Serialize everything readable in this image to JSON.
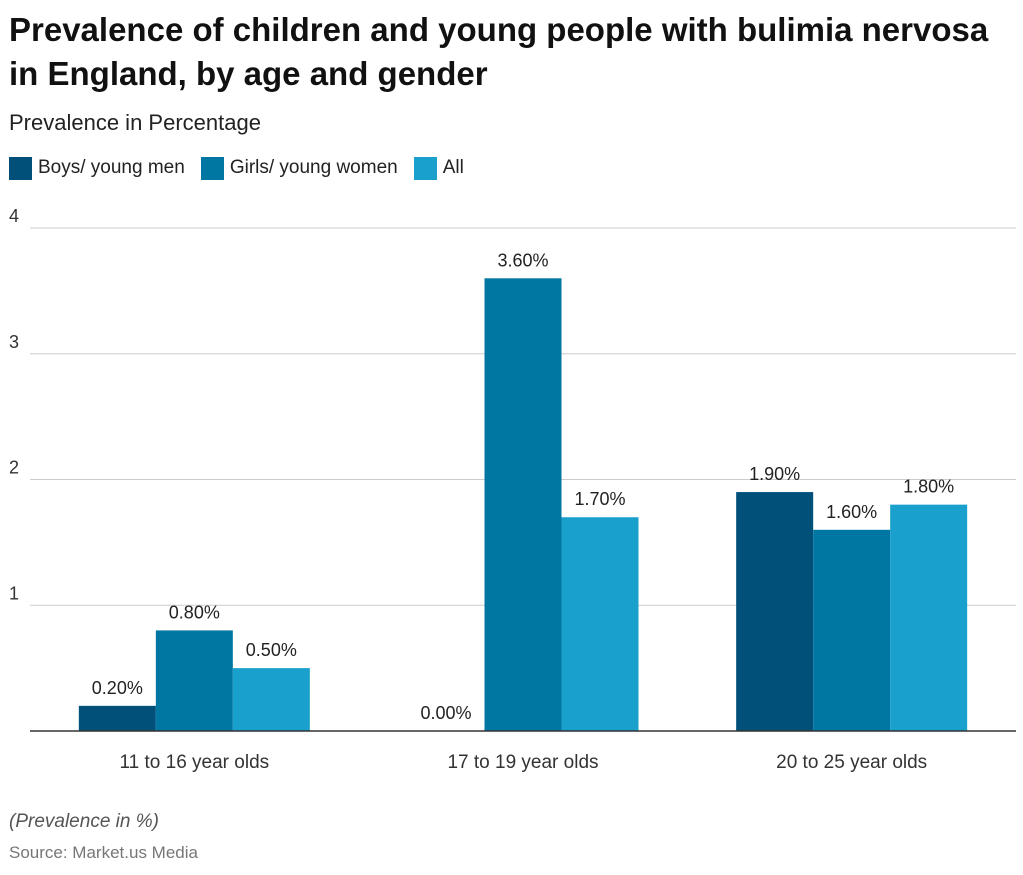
{
  "title": "Prevalence of children and young people with bulimia nervosa in England, by age and gender",
  "subtitle": "Prevalence in Percentage",
  "note": "(Prevalence in %)",
  "source": "Source: Market.us Media",
  "chart_data": {
    "type": "bar",
    "title": "Prevalence of children and young people with bulimia nervosa in England, by age and gender",
    "subtitle": "Prevalence in Percentage",
    "xlabel": "",
    "ylabel": "",
    "categories": [
      "11 to 16 year olds",
      "17 to 19 year olds",
      "20 to 25 year olds"
    ],
    "series": [
      {
        "name": "Boys/ young men",
        "color": "#00507a",
        "values": [
          0.2,
          0.0,
          1.9
        ],
        "labels": [
          "0.20%",
          "0.00%",
          "1.90%"
        ]
      },
      {
        "name": "Girls/ young women",
        "color": "#0077a2",
        "values": [
          0.8,
          3.6,
          1.6
        ],
        "labels": [
          "0.80%",
          "3.60%",
          "1.60%"
        ]
      },
      {
        "name": "All",
        "color": "#1aa0cc",
        "values": [
          0.5,
          1.7,
          1.8
        ],
        "labels": [
          "0.50%",
          "1.70%",
          "1.80%"
        ]
      }
    ],
    "ylim": [
      0,
      4
    ],
    "yticks": [
      1,
      2,
      3,
      4
    ],
    "grid": true,
    "legend": "top-left"
  }
}
